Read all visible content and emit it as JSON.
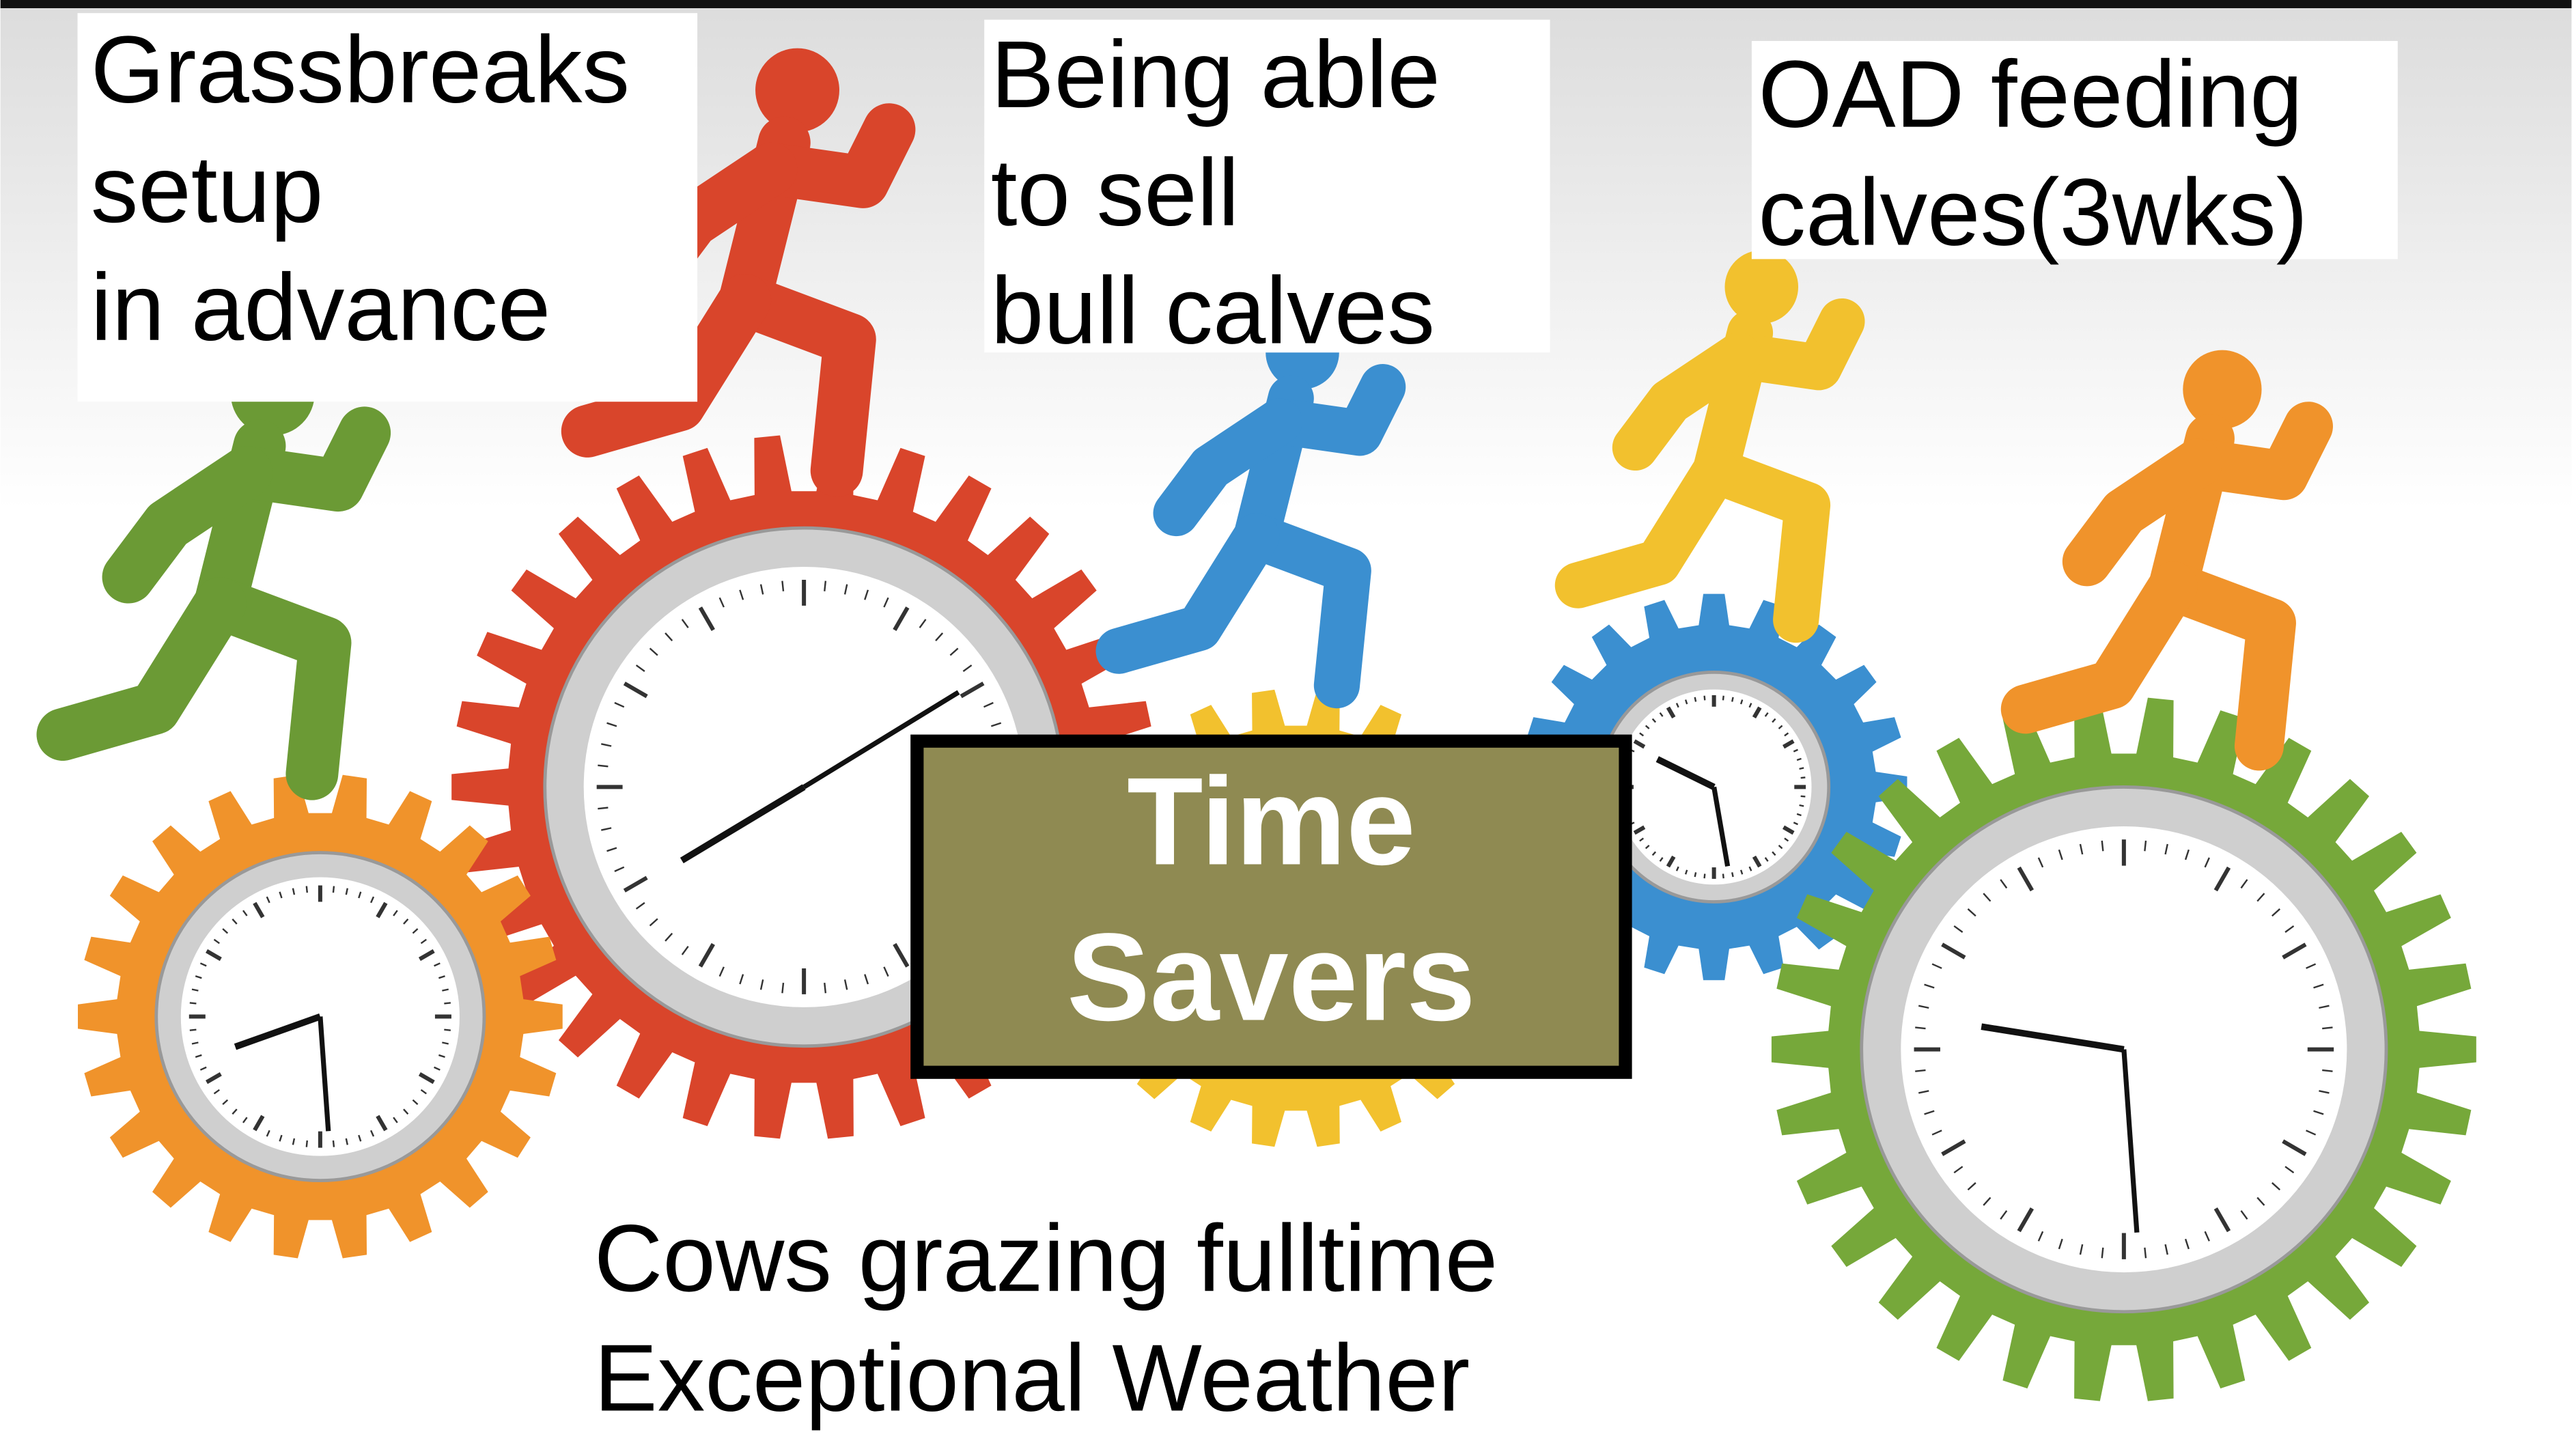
{
  "labels": [
    {
      "lines": [
        "Grassbreaks",
        "setup",
        "in advance"
      ]
    },
    {
      "lines": [
        "Being able",
        "to sell",
        "bull calves"
      ]
    },
    {
      "lines": [
        "OAD feeding",
        "calves(3wks)"
      ]
    }
  ],
  "center": {
    "lines": [
      "Time",
      "Savers"
    ]
  },
  "footer": {
    "lines": [
      "Cows grazing fulltime",
      "Exceptional Weather"
    ]
  }
}
